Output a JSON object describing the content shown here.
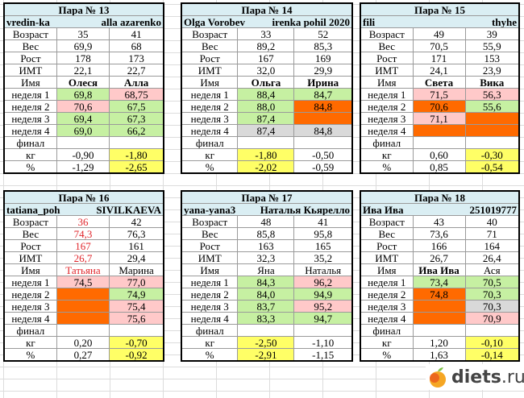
{
  "labels": [
    "Возраст",
    "Вес",
    "Рост",
    "ИМТ",
    "Имя",
    "неделя 1",
    "неделя 2",
    "неделя 3",
    "неделя 4",
    "финал",
    "кг",
    "%"
  ],
  "pairs": [
    {
      "title": "Пара № 13",
      "nick1": "vredin-ka",
      "nick2": "alla azarenko",
      "names_bold": true,
      "red_col1": false,
      "col1": [
        [
          "35",
          ""
        ],
        [
          "69,9",
          ""
        ],
        [
          "178",
          ""
        ],
        [
          "22,1",
          ""
        ],
        [
          "Олеся",
          ""
        ],
        [
          "69,8",
          "g"
        ],
        [
          "70,6",
          "p"
        ],
        [
          "69,4",
          "g"
        ],
        [
          "69,0",
          "g"
        ],
        [
          "",
          ""
        ],
        [
          "-0,90",
          ""
        ],
        [
          "-1,29",
          ""
        ]
      ],
      "col2": [
        [
          "41",
          ""
        ],
        [
          "68",
          ""
        ],
        [
          "173",
          ""
        ],
        [
          "22,7",
          ""
        ],
        [
          "Алла",
          ""
        ],
        [
          "68,75",
          "p"
        ],
        [
          "67,5",
          "g"
        ],
        [
          "67,3",
          "g"
        ],
        [
          "66,2",
          "g"
        ],
        [
          "",
          ""
        ],
        [
          "-1,80",
          "y"
        ],
        [
          "-2,65",
          "y"
        ]
      ]
    },
    {
      "title": "Пара № 14",
      "nick1": "Olga Vorobev",
      "nick2": "irenka pohil 2020",
      "names_bold": true,
      "red_col1": false,
      "col1": [
        [
          "33",
          ""
        ],
        [
          "89,2",
          ""
        ],
        [
          "167",
          ""
        ],
        [
          "32,0",
          ""
        ],
        [
          "Ольга",
          ""
        ],
        [
          "88,4",
          "g"
        ],
        [
          "88,0",
          "g"
        ],
        [
          "87,4",
          "g"
        ],
        [
          "87,4",
          "gr"
        ],
        [
          "",
          ""
        ],
        [
          "-1,80",
          "y"
        ],
        [
          "-2,02",
          "y"
        ]
      ],
      "col2": [
        [
          "52",
          ""
        ],
        [
          "85,3",
          ""
        ],
        [
          "169",
          ""
        ],
        [
          "29,9",
          ""
        ],
        [
          "Ирина",
          ""
        ],
        [
          "84,7",
          "g"
        ],
        [
          "84,8",
          "o"
        ],
        [
          "",
          "o"
        ],
        [
          "84,8",
          "gr"
        ],
        [
          "",
          ""
        ],
        [
          "-0,50",
          ""
        ],
        [
          "-0,59",
          ""
        ]
      ]
    },
    {
      "title": "Пара № 15",
      "nick1": "fili",
      "nick2": "thyhe",
      "names_bold": true,
      "red_col1": false,
      "col1": [
        [
          "49",
          ""
        ],
        [
          "70,5",
          ""
        ],
        [
          "171",
          ""
        ],
        [
          "24,1",
          ""
        ],
        [
          "Света",
          ""
        ],
        [
          "71,5",
          "p"
        ],
        [
          "70,6",
          "o"
        ],
        [
          "71,1",
          "p"
        ],
        [
          "",
          "o"
        ],
        [
          "",
          ""
        ],
        [
          "0,60",
          ""
        ],
        [
          "0,85",
          ""
        ]
      ],
      "col2": [
        [
          "39",
          ""
        ],
        [
          "55,9",
          ""
        ],
        [
          "153",
          ""
        ],
        [
          "23,9",
          ""
        ],
        [
          "Вика",
          ""
        ],
        [
          "56,3",
          "p"
        ],
        [
          "55,6",
          "g"
        ],
        [
          "",
          "o"
        ],
        [
          "",
          "o"
        ],
        [
          "",
          ""
        ],
        [
          "-0,30",
          "y"
        ],
        [
          "-0,54",
          "y"
        ]
      ]
    },
    {
      "title": "Пара № 16",
      "nick1": "tatiana_poh",
      "nick2": "SIVILKAEVA",
      "names_bold": false,
      "red_col1": true,
      "col1": [
        [
          "36",
          ""
        ],
        [
          "74,3",
          ""
        ],
        [
          "167",
          ""
        ],
        [
          "26,7",
          ""
        ],
        [
          "Татьяна",
          ""
        ],
        [
          "74,5",
          "p"
        ],
        [
          "",
          "o"
        ],
        [
          "",
          "o"
        ],
        [
          "",
          "o"
        ],
        [
          "",
          ""
        ],
        [
          "0,20",
          ""
        ],
        [
          "0,27",
          ""
        ]
      ],
      "col2": [
        [
          "42",
          ""
        ],
        [
          "76,3",
          ""
        ],
        [
          "161",
          ""
        ],
        [
          "29,4",
          ""
        ],
        [
          "Марина",
          ""
        ],
        [
          "77,0",
          "p"
        ],
        [
          "74,9",
          "g"
        ],
        [
          "75,4",
          "p"
        ],
        [
          "75,6",
          "p"
        ],
        [
          "",
          ""
        ],
        [
          "-0,70",
          "y"
        ],
        [
          "-0,92",
          "y"
        ]
      ]
    },
    {
      "title": "Пара № 17",
      "nick1": "yana-yana3",
      "nick2": "Наталья Кьярелло",
      "names_bold": false,
      "red_col1": false,
      "col1": [
        [
          "48",
          ""
        ],
        [
          "85,8",
          ""
        ],
        [
          "163",
          ""
        ],
        [
          "32,3",
          ""
        ],
        [
          "Яна",
          ""
        ],
        [
          "84,3",
          "g"
        ],
        [
          "84,0",
          "g"
        ],
        [
          "83,7",
          "g"
        ],
        [
          "83,3",
          "g"
        ],
        [
          "",
          ""
        ],
        [
          "-2,50",
          "y"
        ],
        [
          "-2,91",
          "y"
        ]
      ],
      "col2": [
        [
          "41",
          ""
        ],
        [
          "95,8",
          ""
        ],
        [
          "165",
          ""
        ],
        [
          "35,2",
          ""
        ],
        [
          "Наталья",
          ""
        ],
        [
          "96,2",
          "p"
        ],
        [
          "94,9",
          "g"
        ],
        [
          "95,2",
          "p"
        ],
        [
          "94,7",
          "g"
        ],
        [
          "",
          ""
        ],
        [
          "-1,10",
          ""
        ],
        [
          "-1,15",
          ""
        ]
      ]
    },
    {
      "title": "Пара № 18",
      "nick1": "Ива Ива",
      "nick2": "251019777",
      "names_bold": false,
      "red_col1": false,
      "bold_name1": true,
      "col1": [
        [
          "43",
          ""
        ],
        [
          "73,6",
          ""
        ],
        [
          "166",
          ""
        ],
        [
          "26,7",
          ""
        ],
        [
          "Ива Ива",
          ""
        ],
        [
          "73,4",
          "g"
        ],
        [
          "74,8",
          "o"
        ],
        [
          "",
          "o"
        ],
        [
          "",
          "o"
        ],
        [
          "",
          ""
        ],
        [
          "1,20",
          ""
        ],
        [
          "1,63",
          ""
        ]
      ],
      "col2": [
        [
          "40",
          ""
        ],
        [
          "71",
          ""
        ],
        [
          "164",
          ""
        ],
        [
          "26,4",
          ""
        ],
        [
          "Ася",
          ""
        ],
        [
          "70,5",
          "g"
        ],
        [
          "70,3",
          "g"
        ],
        [
          "70,3",
          "gr"
        ],
        [
          "70,9",
          "p"
        ],
        [
          "",
          ""
        ],
        [
          "-0,10",
          "y"
        ],
        [
          "-0,14",
          "y"
        ]
      ]
    }
  ],
  "logo": {
    "text_bold": "diets",
    "text_rest": ".ru"
  },
  "colors": {
    "green": "#c6f0a2",
    "pink": "#ffc9c9",
    "orange": "#ff6a00",
    "yellow": "#ffff66",
    "gray": "#d9d9d9",
    "header": "#daeef3"
  }
}
